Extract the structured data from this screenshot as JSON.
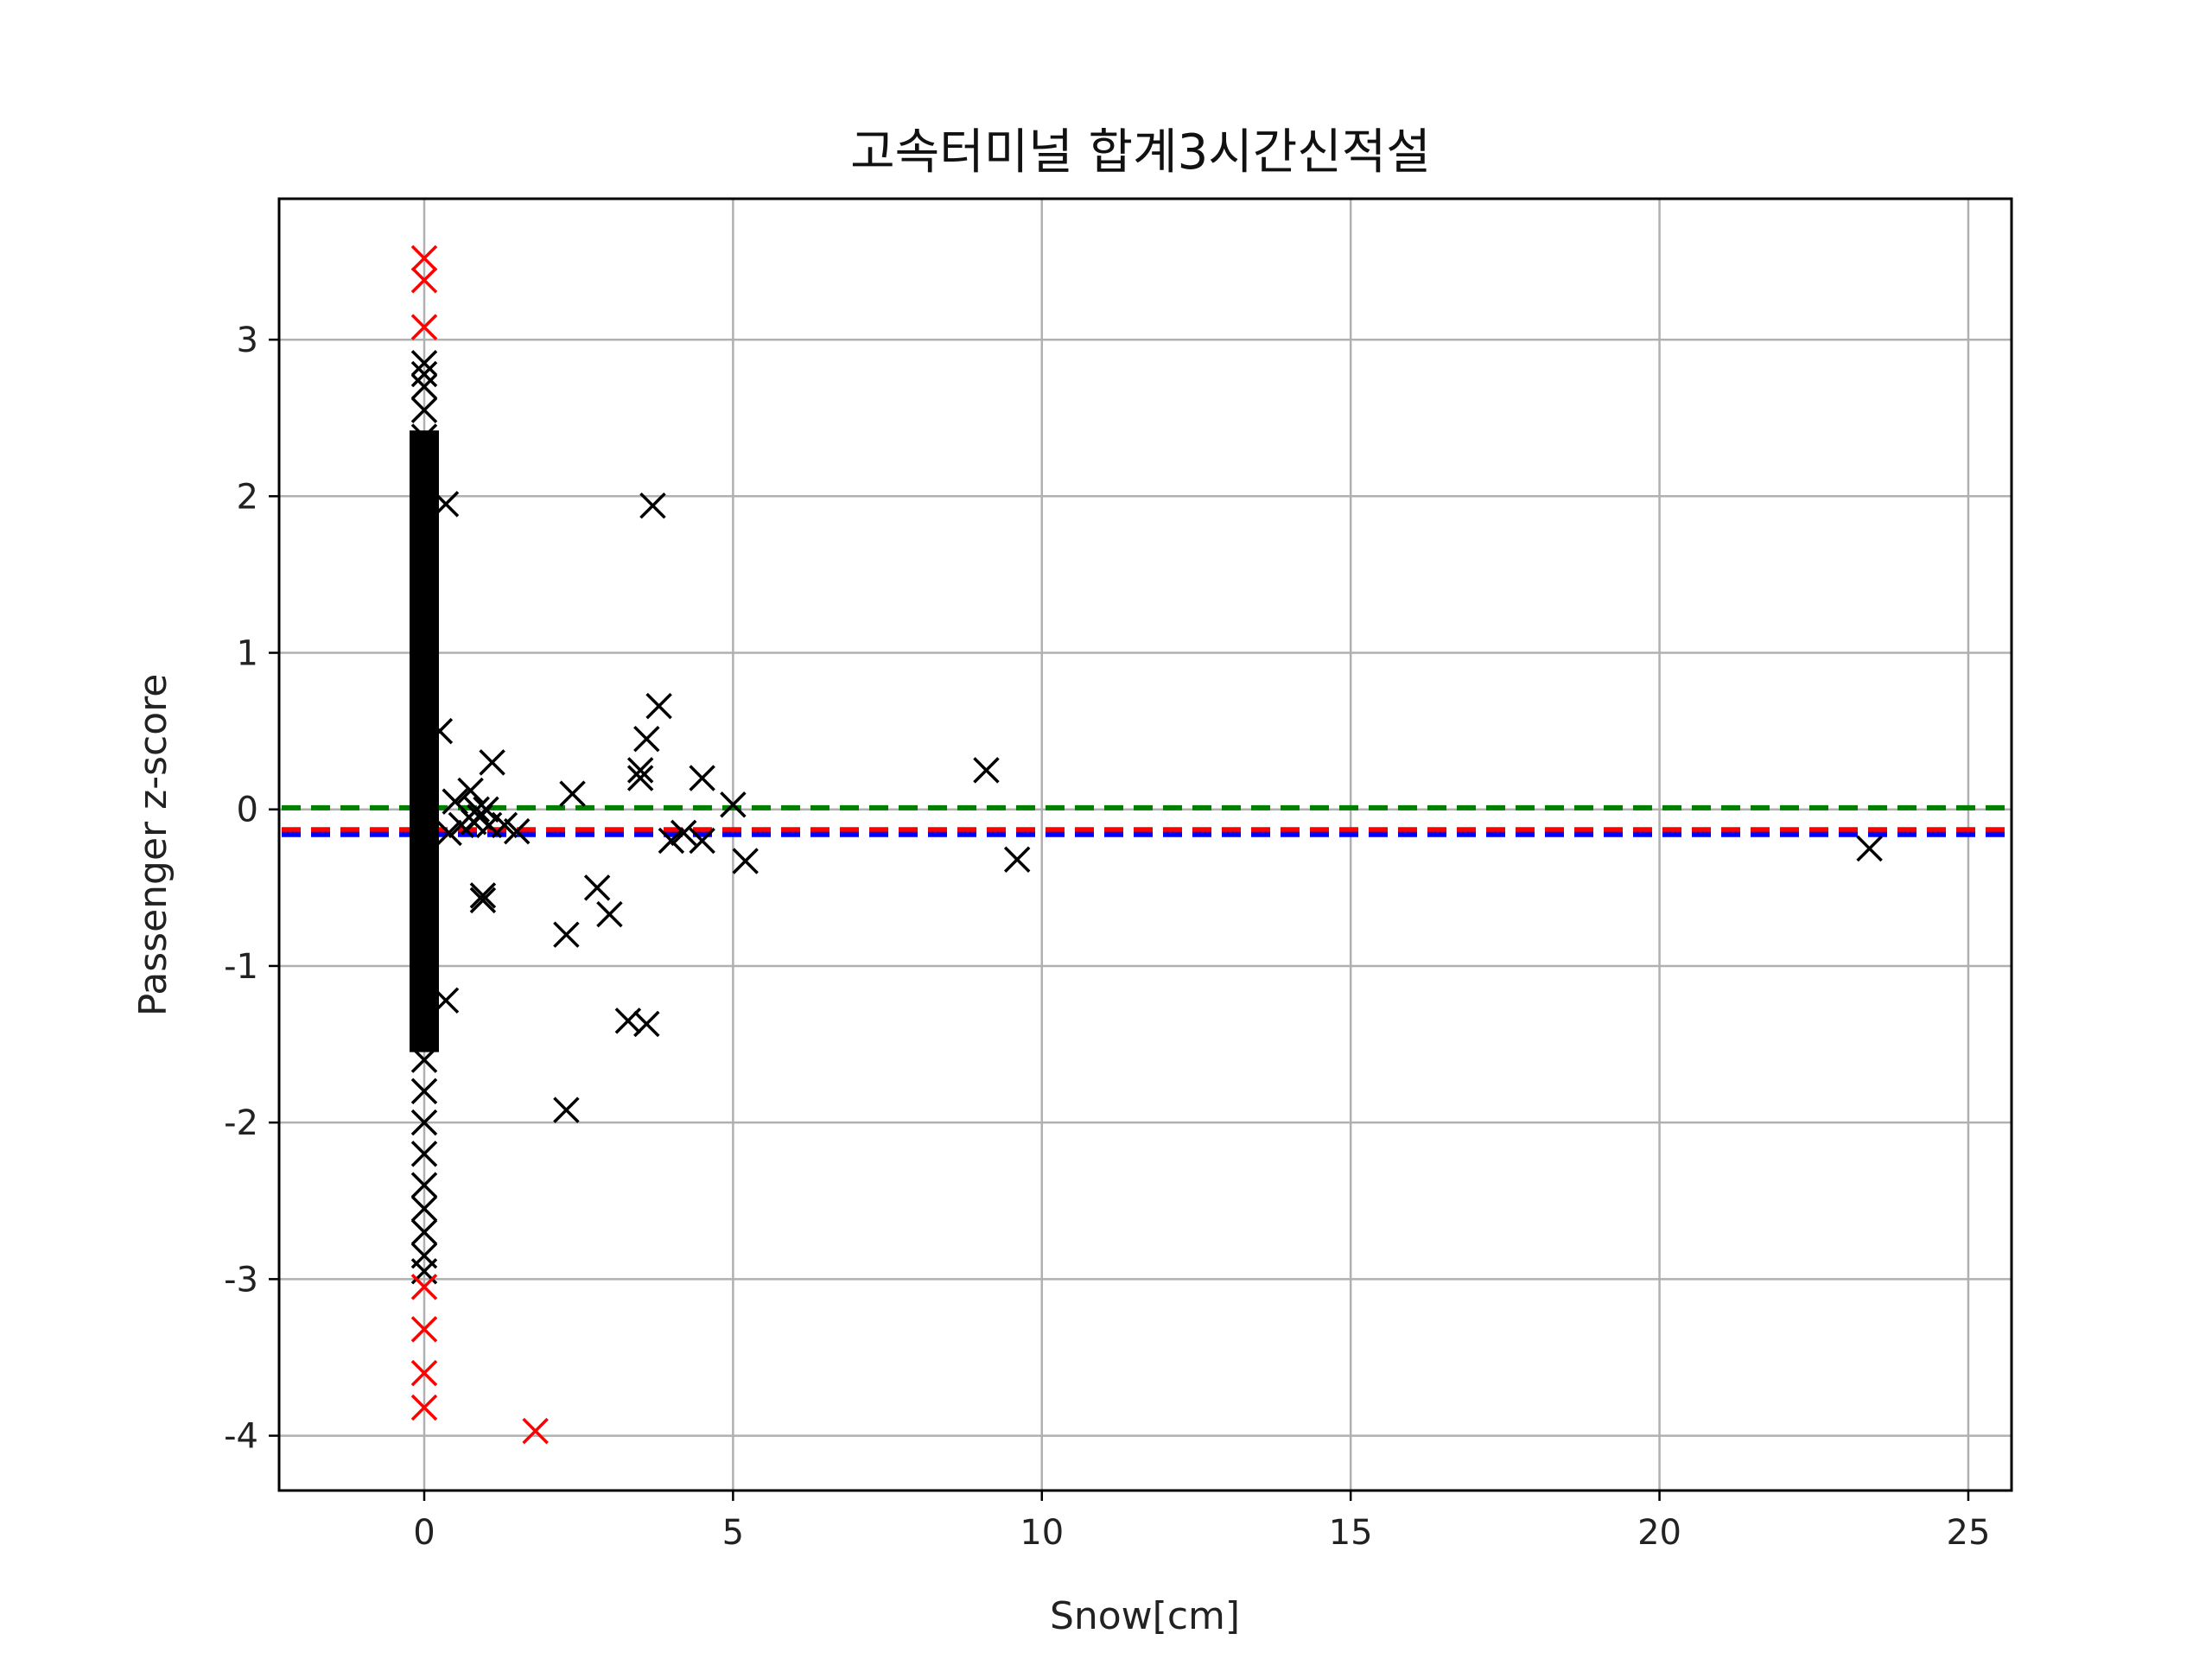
{
  "chart_data": {
    "type": "scatter",
    "title": "고속터미널 합계3시간신적설",
    "xlabel": "Snow[cm]",
    "ylabel": "Passenger z-score",
    "xlim": [
      -2.35,
      25.7
    ],
    "ylim": [
      -4.35,
      3.9
    ],
    "xticks": [
      0,
      5,
      10,
      15,
      20,
      25
    ],
    "yticks": [
      -4,
      -3,
      -2,
      -1,
      0,
      1,
      2,
      3
    ],
    "grid": true,
    "marker": "x",
    "hlines": [
      {
        "y": 0.01,
        "color": "#008000",
        "style": "dashed"
      },
      {
        "y": -0.13,
        "color": "#ff0000",
        "style": "dashed"
      },
      {
        "y": -0.16,
        "color": "#0000ff",
        "style": "dashed"
      }
    ],
    "series": [
      {
        "color": "#000000",
        "points": [
          [
            0.35,
            1.95
          ],
          [
            3.7,
            1.94
          ],
          [
            0.25,
            0.5
          ],
          [
            3.8,
            0.66
          ],
          [
            3.6,
            0.45
          ],
          [
            1.1,
            0.3
          ],
          [
            3.5,
            0.25
          ],
          [
            3.5,
            0.2
          ],
          [
            9.1,
            0.25
          ],
          [
            4.5,
            0.2
          ],
          [
            2.4,
            0.1
          ],
          [
            5.0,
            0.03
          ],
          [
            0.5,
            0.05
          ],
          [
            0.75,
            0.12
          ],
          [
            0.85,
            0.0
          ],
          [
            0.9,
            -0.05
          ],
          [
            1.0,
            0.0
          ],
          [
            1.05,
            -0.1
          ],
          [
            1.3,
            -0.1
          ],
          [
            1.5,
            -0.14
          ],
          [
            0.6,
            -0.1
          ],
          [
            0.4,
            -0.15
          ],
          [
            0.8,
            -0.08
          ],
          [
            4.0,
            -0.2
          ],
          [
            4.2,
            -0.15
          ],
          [
            4.5,
            -0.2
          ],
          [
            5.2,
            -0.33
          ],
          [
            9.6,
            -0.32
          ],
          [
            23.4,
            -0.25
          ],
          [
            0.95,
            -0.55
          ],
          [
            0.95,
            -0.58
          ],
          [
            2.8,
            -0.5
          ],
          [
            3.0,
            -0.67
          ],
          [
            2.3,
            -0.8
          ],
          [
            0.35,
            -1.22
          ],
          [
            3.3,
            -1.35
          ],
          [
            3.6,
            -1.37
          ],
          [
            2.3,
            -1.92
          ],
          [
            0.0,
            2.85
          ],
          [
            0.0,
            2.78
          ],
          [
            0.0,
            2.7
          ],
          [
            0.0,
            2.55
          ],
          [
            0.0,
            2.38
          ],
          [
            0.0,
            2.2
          ],
          [
            0.0,
            2.0
          ],
          [
            0.0,
            1.8
          ],
          [
            0.0,
            1.6
          ],
          [
            0.0,
            1.4
          ],
          [
            0.0,
            1.2
          ],
          [
            0.0,
            1.0
          ],
          [
            0.0,
            0.8
          ],
          [
            0.0,
            0.6
          ],
          [
            0.0,
            0.4
          ],
          [
            0.0,
            0.2
          ],
          [
            0.0,
            0.0
          ],
          [
            0.0,
            -0.2
          ],
          [
            0.0,
            -0.4
          ],
          [
            0.0,
            -0.6
          ],
          [
            0.0,
            -0.8
          ],
          [
            0.0,
            -1.0
          ],
          [
            0.0,
            -1.2
          ],
          [
            0.0,
            -1.4
          ],
          [
            0.0,
            -1.6
          ],
          [
            0.0,
            -1.8
          ],
          [
            0.0,
            -2.0
          ],
          [
            0.0,
            -2.2
          ],
          [
            0.0,
            -2.4
          ],
          [
            0.0,
            -2.55
          ],
          [
            0.0,
            -2.7
          ],
          [
            0.0,
            -2.85
          ],
          [
            0.0,
            -2.95
          ]
        ]
      },
      {
        "color": "#ff0000",
        "points": [
          [
            0.0,
            3.52
          ],
          [
            0.0,
            3.38
          ],
          [
            0.0,
            3.08
          ],
          [
            0.0,
            -3.05
          ],
          [
            0.0,
            -3.32
          ],
          [
            0.0,
            -3.6
          ],
          [
            0.0,
            -3.82
          ],
          [
            1.8,
            -3.97
          ]
        ]
      }
    ]
  }
}
